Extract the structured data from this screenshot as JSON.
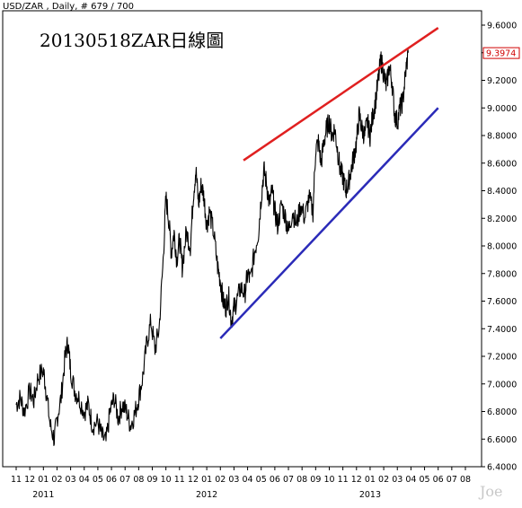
{
  "chart_data": {
    "type": "line",
    "header": "USD/ZAR , Daily, # 679 / 700",
    "title": "20130518ZAR日線圖",
    "watermark": "Joe",
    "y_axis": {
      "ticks": [
        "9.6000",
        "9.4000",
        "9.2000",
        "9.0000",
        "8.8000",
        "8.6000",
        "8.4000",
        "8.2000",
        "8.0000",
        "7.8000",
        "7.6000",
        "7.4000",
        "7.2000",
        "7.0000",
        "6.8000",
        "6.6000",
        "6.4000"
      ],
      "ylim": [
        6.4,
        9.6
      ]
    },
    "last_value_label": "9.3974",
    "x_ticks": [
      "11",
      "12",
      "01",
      "02",
      "03",
      "04",
      "05",
      "06",
      "07",
      "08",
      "09",
      "10",
      "11",
      "12",
      "01",
      "02",
      "03",
      "04",
      "05",
      "06",
      "07",
      "08",
      "09",
      "10",
      "11",
      "12",
      "01",
      "02",
      "03",
      "04",
      "05",
      "06",
      "07",
      "08"
    ],
    "year_labels": [
      "2011",
      "2012",
      "2013"
    ],
    "x_range_months": [
      0,
      33
    ],
    "year_label_positions": [
      2,
      14,
      26
    ],
    "series": [
      {
        "points": [
          [
            0.0,
            6.85
          ],
          [
            0.3,
            6.9
          ],
          [
            0.6,
            6.8
          ],
          [
            1.0,
            6.95
          ],
          [
            1.3,
            6.88
          ],
          [
            1.6,
            7.05
          ],
          [
            2.0,
            7.1
          ],
          [
            2.2,
            6.95
          ],
          [
            2.5,
            6.7
          ],
          [
            2.8,
            6.6
          ],
          [
            3.0,
            6.75
          ],
          [
            3.3,
            6.9
          ],
          [
            3.6,
            7.2
          ],
          [
            3.8,
            7.3
          ],
          [
            4.0,
            7.1
          ],
          [
            4.3,
            6.95
          ],
          [
            4.6,
            6.9
          ],
          [
            5.0,
            6.8
          ],
          [
            5.3,
            6.85
          ],
          [
            5.6,
            6.7
          ],
          [
            6.0,
            6.72
          ],
          [
            6.3,
            6.62
          ],
          [
            6.6,
            6.58
          ],
          [
            6.9,
            6.8
          ],
          [
            7.2,
            6.9
          ],
          [
            7.5,
            6.75
          ],
          [
            7.8,
            6.85
          ],
          [
            8.1,
            6.8
          ],
          [
            8.4,
            6.7
          ],
          [
            8.7,
            6.78
          ],
          [
            9.0,
            6.9
          ],
          [
            9.3,
            7.05
          ],
          [
            9.6,
            7.3
          ],
          [
            9.9,
            7.45
          ],
          [
            10.2,
            7.25
          ],
          [
            10.5,
            7.4
          ],
          [
            10.8,
            7.9
          ],
          [
            11.0,
            8.35
          ],
          [
            11.2,
            8.2
          ],
          [
            11.4,
            7.95
          ],
          [
            11.6,
            8.1
          ],
          [
            11.8,
            7.9
          ],
          [
            12.0,
            8.05
          ],
          [
            12.2,
            7.85
          ],
          [
            12.5,
            8.1
          ],
          [
            12.8,
            8.0
          ],
          [
            13.0,
            8.35
          ],
          [
            13.2,
            8.55
          ],
          [
            13.4,
            8.3
          ],
          [
            13.6,
            8.45
          ],
          [
            13.8,
            8.35
          ],
          [
            14.0,
            8.15
          ],
          [
            14.2,
            8.25
          ],
          [
            14.5,
            8.1
          ],
          [
            14.8,
            7.85
          ],
          [
            15.0,
            7.75
          ],
          [
            15.2,
            7.6
          ],
          [
            15.4,
            7.55
          ],
          [
            15.6,
            7.65
          ],
          [
            15.8,
            7.45
          ],
          [
            16.0,
            7.55
          ],
          [
            16.2,
            7.6
          ],
          [
            16.5,
            7.7
          ],
          [
            16.8,
            7.65
          ],
          [
            17.0,
            7.8
          ],
          [
            17.2,
            7.75
          ],
          [
            17.5,
            7.95
          ],
          [
            17.8,
            8.1
          ],
          [
            18.0,
            8.35
          ],
          [
            18.2,
            8.55
          ],
          [
            18.4,
            8.45
          ],
          [
            18.6,
            8.3
          ],
          [
            18.8,
            8.4
          ],
          [
            19.0,
            8.25
          ],
          [
            19.2,
            8.15
          ],
          [
            19.5,
            8.3
          ],
          [
            19.8,
            8.2
          ],
          [
            20.0,
            8.1
          ],
          [
            20.3,
            8.25
          ],
          [
            20.6,
            8.15
          ],
          [
            20.9,
            8.3
          ],
          [
            21.2,
            8.2
          ],
          [
            21.5,
            8.35
          ],
          [
            21.8,
            8.25
          ],
          [
            22.0,
            8.7
          ],
          [
            22.2,
            8.75
          ],
          [
            22.4,
            8.6
          ],
          [
            22.6,
            8.75
          ],
          [
            22.8,
            8.85
          ],
          [
            23.0,
            8.9
          ],
          [
            23.2,
            8.8
          ],
          [
            23.4,
            8.85
          ],
          [
            23.6,
            8.7
          ],
          [
            23.8,
            8.55
          ],
          [
            24.0,
            8.5
          ],
          [
            24.2,
            8.4
          ],
          [
            24.4,
            8.45
          ],
          [
            24.6,
            8.55
          ],
          [
            24.8,
            8.65
          ],
          [
            25.0,
            8.75
          ],
          [
            25.2,
            8.95
          ],
          [
            25.4,
            8.85
          ],
          [
            25.6,
            8.8
          ],
          [
            25.8,
            8.9
          ],
          [
            26.0,
            8.8
          ],
          [
            26.2,
            8.95
          ],
          [
            26.4,
            9.05
          ],
          [
            26.6,
            9.2
          ],
          [
            26.8,
            9.35
          ],
          [
            27.0,
            9.25
          ],
          [
            27.2,
            9.15
          ],
          [
            27.4,
            9.3
          ],
          [
            27.6,
            9.2
          ],
          [
            27.8,
            8.95
          ],
          [
            28.0,
            8.9
          ],
          [
            28.2,
            9.0
          ],
          [
            28.4,
            9.05
          ],
          [
            28.6,
            9.25
          ],
          [
            28.8,
            9.4
          ]
        ]
      }
    ],
    "trendlines": [
      {
        "color": "#e02020",
        "from": [
          16.7,
          8.62
        ],
        "to": [
          31.0,
          9.58
        ]
      },
      {
        "color": "#2b2bb8",
        "from": [
          15.0,
          7.33
        ],
        "to": [
          31.0,
          9.0
        ]
      }
    ]
  }
}
